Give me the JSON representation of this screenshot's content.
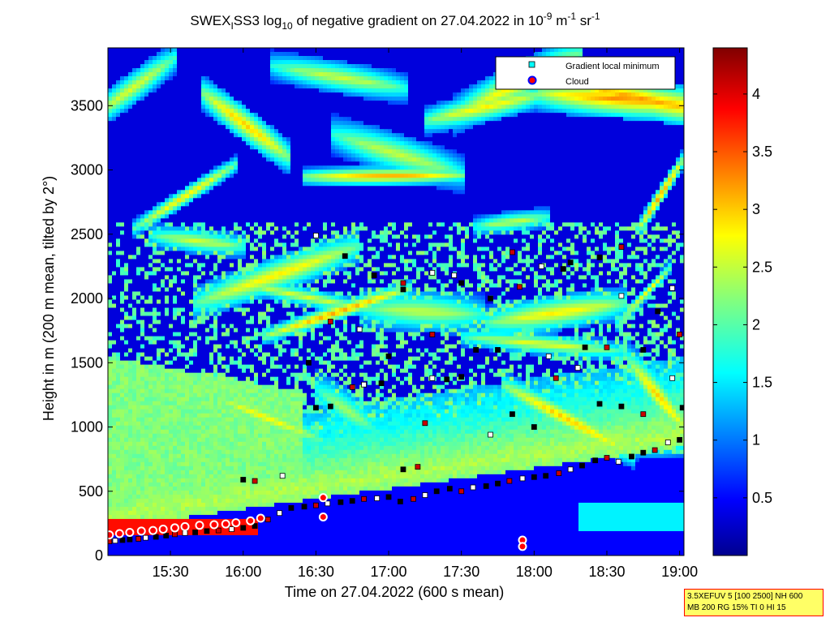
{
  "chart_data": {
    "type": "heatmap",
    "title_parts": {
      "main": "SWEX",
      "sub1": "I",
      "mid": "SS3 log",
      "sub2": "10",
      "rest": " of negative gradient on 27.04.2022 in 10",
      "sup1": "-9",
      "unit1": " m",
      "sup2": "-1",
      "unit2": " sr",
      "sup3": "-1"
    },
    "xlabel": "Time on 27.04.2022 (600 s mean)",
    "ylabel": "Height in m (200 m mean, tilted by 2°)",
    "x_ticks": [
      "15:30",
      "16:00",
      "16:30",
      "17:00",
      "17:30",
      "18:00",
      "18:30",
      "19:00"
    ],
    "x_tick_hours": [
      15.5,
      16.0,
      16.5,
      17.0,
      17.5,
      18.0,
      18.5,
      19.0
    ],
    "x_range_hours": [
      15.07,
      19.03
    ],
    "y_ticks": [
      0,
      500,
      1000,
      1500,
      2000,
      2500,
      3000,
      3500
    ],
    "y_range": [
      0,
      3950
    ],
    "colorbar": {
      "ticks": [
        0.5,
        1,
        1.5,
        2,
        2.5,
        3,
        3.5,
        4
      ],
      "tick_labels": [
        "0.5",
        "1",
        "1.5",
        "2",
        "2.5",
        "3",
        "3.5",
        "4"
      ],
      "range": [
        0,
        4.4
      ],
      "colormap": "jet"
    },
    "legend": {
      "placement": "top-right",
      "entries": [
        {
          "label": "Gradient local minimum",
          "marker": "square",
          "color": "#00ffff"
        },
        {
          "label": "Cloud",
          "marker": "circle",
          "color": "#ff0000",
          "edge": "#0000ff"
        }
      ]
    },
    "series": [
      {
        "name": "Gradient local minimum",
        "points": [
          [
            15.08,
            110
          ],
          [
            15.12,
            115
          ],
          [
            15.17,
            120
          ],
          [
            15.22,
            125
          ],
          [
            15.28,
            130
          ],
          [
            15.33,
            138
          ],
          [
            15.4,
            145
          ],
          [
            15.47,
            155
          ],
          [
            15.53,
            165
          ],
          [
            15.6,
            175
          ],
          [
            15.67,
            180
          ],
          [
            15.75,
            190
          ],
          [
            15.83,
            195
          ],
          [
            15.92,
            205
          ],
          [
            16.0,
            215
          ],
          [
            16.08,
            230
          ],
          [
            16.17,
            280
          ],
          [
            16.25,
            330
          ],
          [
            16.33,
            370
          ],
          [
            16.42,
            380
          ],
          [
            16.5,
            390
          ],
          [
            16.58,
            405
          ],
          [
            16.67,
            415
          ],
          [
            16.75,
            425
          ],
          [
            16.83,
            440
          ],
          [
            16.92,
            445
          ],
          [
            17.0,
            455
          ],
          [
            17.08,
            420
          ],
          [
            17.17,
            440
          ],
          [
            17.25,
            470
          ],
          [
            17.33,
            500
          ],
          [
            17.42,
            520
          ],
          [
            17.5,
            500
          ],
          [
            17.58,
            530
          ],
          [
            17.67,
            540
          ],
          [
            17.75,
            560
          ],
          [
            17.83,
            580
          ],
          [
            17.92,
            600
          ],
          [
            18.0,
            610
          ],
          [
            18.08,
            620
          ],
          [
            18.17,
            640
          ],
          [
            18.25,
            670
          ],
          [
            18.33,
            700
          ],
          [
            18.42,
            740
          ],
          [
            18.5,
            760
          ],
          [
            18.58,
            730
          ],
          [
            18.67,
            770
          ],
          [
            18.75,
            800
          ],
          [
            18.83,
            820
          ],
          [
            18.92,
            880
          ],
          [
            19.0,
            900
          ],
          [
            16.0,
            590
          ],
          [
            16.08,
            580
          ],
          [
            16.27,
            620
          ],
          [
            16.5,
            1150
          ],
          [
            16.6,
            1160
          ],
          [
            16.75,
            1310
          ],
          [
            16.83,
            1330
          ],
          [
            16.95,
            1340
          ],
          [
            17.1,
            670
          ],
          [
            17.2,
            690
          ],
          [
            17.3,
            1380
          ],
          [
            17.4,
            1370
          ],
          [
            17.5,
            1390
          ],
          [
            17.25,
            1030
          ],
          [
            17.7,
            940
          ],
          [
            17.85,
            1100
          ],
          [
            18.0,
            1000
          ],
          [
            18.15,
            1380
          ],
          [
            18.3,
            1460
          ],
          [
            18.45,
            1180
          ],
          [
            18.6,
            1160
          ],
          [
            18.75,
            1100
          ],
          [
            18.95,
            1380
          ],
          [
            19.02,
            1150
          ],
          [
            16.45,
            1500
          ],
          [
            16.6,
            1820
          ],
          [
            16.8,
            1760
          ],
          [
            17.0,
            1550
          ],
          [
            17.1,
            2070
          ],
          [
            17.3,
            1720
          ],
          [
            17.45,
            2180
          ],
          [
            17.6,
            1600
          ],
          [
            17.75,
            1600
          ],
          [
            17.9,
            2090
          ],
          [
            18.1,
            1550
          ],
          [
            18.2,
            2230
          ],
          [
            18.35,
            1620
          ],
          [
            18.5,
            1620
          ],
          [
            18.6,
            2020
          ],
          [
            18.75,
            1600
          ],
          [
            18.85,
            1900
          ],
          [
            19.0,
            1720
          ],
          [
            16.5,
            2490
          ],
          [
            16.7,
            2330
          ],
          [
            16.9,
            2180
          ],
          [
            17.1,
            2120
          ],
          [
            17.3,
            2200
          ],
          [
            17.5,
            2120
          ],
          [
            17.7,
            2000
          ],
          [
            17.85,
            2360
          ],
          [
            18.05,
            2250
          ],
          [
            18.25,
            2280
          ],
          [
            18.45,
            2320
          ],
          [
            18.6,
            2400
          ],
          [
            18.95,
            2080
          ]
        ]
      },
      {
        "name": "Cloud",
        "points": [
          [
            15.08,
            160
          ],
          [
            15.15,
            170
          ],
          [
            15.22,
            180
          ],
          [
            15.3,
            190
          ],
          [
            15.38,
            195
          ],
          [
            15.45,
            205
          ],
          [
            15.53,
            215
          ],
          [
            15.6,
            225
          ],
          [
            15.7,
            235
          ],
          [
            15.8,
            240
          ],
          [
            15.88,
            245
          ],
          [
            15.95,
            255
          ],
          [
            16.05,
            270
          ],
          [
            16.12,
            290
          ],
          [
            16.55,
            450
          ],
          [
            16.55,
            300
          ],
          [
            17.92,
            120
          ],
          [
            17.92,
            70
          ]
        ]
      }
    ]
  },
  "info_box": {
    "line1": "3.5XEFUV 5 [100 2500] NH 600",
    "line2": "MB 200 RG 15% TI 0 HI 15"
  }
}
